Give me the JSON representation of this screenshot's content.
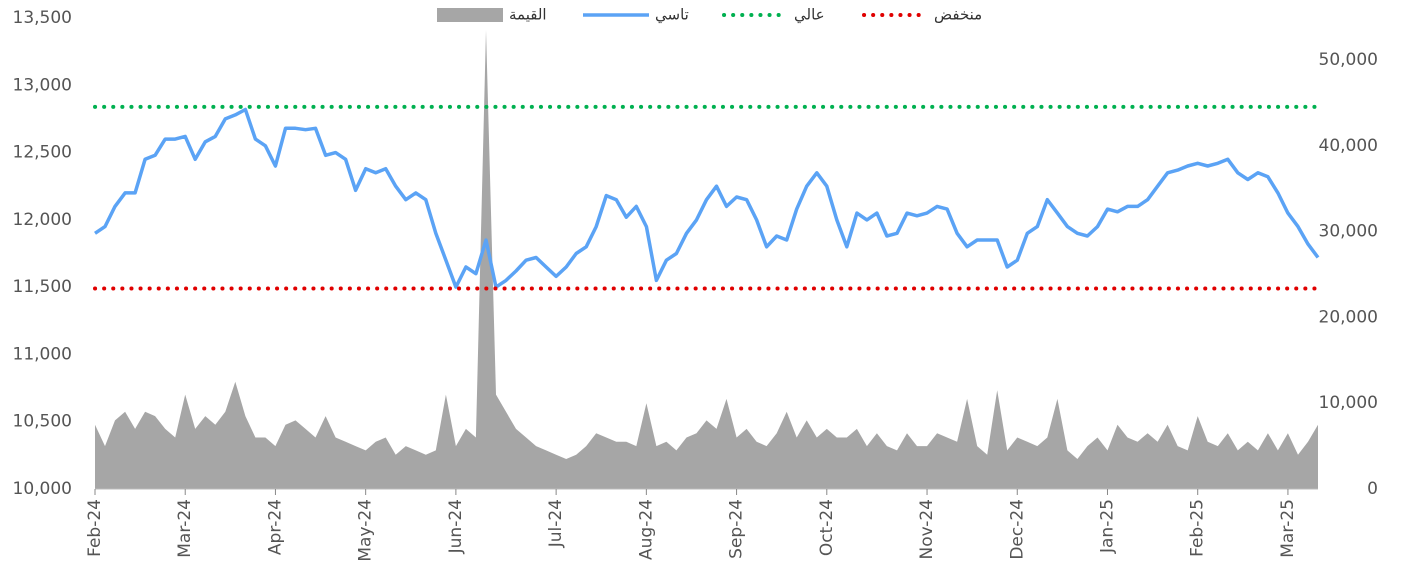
{
  "chart_data": {
    "type": "line",
    "categories": [
      "Feb-24",
      null,
      null,
      null,
      null,
      null,
      null,
      null,
      null,
      "Mar-24",
      null,
      null,
      null,
      null,
      null,
      null,
      null,
      null,
      "Apr-24",
      null,
      null,
      null,
      null,
      null,
      null,
      null,
      null,
      "May-24",
      null,
      null,
      null,
      null,
      null,
      null,
      null,
      null,
      "Jun-24",
      null,
      null,
      null,
      null,
      null,
      null,
      null,
      null,
      null,
      "Jul-24",
      null,
      null,
      null,
      null,
      null,
      null,
      null,
      null,
      "Aug-24",
      null,
      null,
      null,
      null,
      null,
      null,
      null,
      null,
      "Sep-24",
      null,
      null,
      null,
      null,
      null,
      null,
      null,
      null,
      "Oct-24",
      null,
      null,
      null,
      null,
      null,
      null,
      null,
      null,
      null,
      "Nov-24",
      null,
      null,
      null,
      null,
      null,
      null,
      null,
      null,
      "Dec-24",
      null,
      null,
      null,
      null,
      null,
      null,
      null,
      null,
      "Jan-25",
      null,
      null,
      null,
      null,
      null,
      null,
      null,
      null,
      "Feb-25",
      null,
      null,
      null,
      null,
      null,
      null,
      null,
      null,
      "Mar-25",
      null,
      null,
      null
    ],
    "series": [
      {
        "name": "القيمة",
        "type": "area",
        "color": "#a6a6a6",
        "axis": "y2",
        "values": [
          7500,
          5000,
          8000,
          9000,
          7000,
          9000,
          8500,
          7000,
          6000,
          11000,
          7000,
          8500,
          7500,
          9000,
          12500,
          8500,
          6000,
          6000,
          5000,
          7500,
          8000,
          7000,
          6000,
          8500,
          6000,
          5500,
          5000,
          4500,
          5500,
          6000,
          4000,
          5000,
          4500,
          4000,
          4500,
          11000,
          5000,
          7000,
          6000,
          53500,
          11000,
          9000,
          7000,
          6000,
          5000,
          4500,
          4000,
          3500,
          4000,
          5000,
          6500,
          6000,
          5500,
          5500,
          5000,
          10000,
          5000,
          5500,
          4500,
          6000,
          6500,
          8000,
          7000,
          10500,
          6000,
          7000,
          5500,
          5000,
          6500,
          9000,
          6000,
          8000,
          6000,
          7000,
          6000,
          6000,
          7000,
          5000,
          6500,
          5000,
          4500,
          6500,
          5000,
          5000,
          6500,
          6000,
          5500,
          10500,
          5000,
          4000,
          11500,
          4500,
          6000,
          5500,
          5000,
          6000,
          10500,
          4500,
          3500,
          5000,
          6000,
          4500,
          7500,
          6000,
          5500,
          6500,
          5500,
          7500,
          5000,
          4500,
          8500,
          5500,
          5000,
          6500,
          4500,
          5500,
          4500,
          6500,
          4500,
          6500,
          4000,
          5500,
          7500
        ]
      },
      {
        "name": "تاسي",
        "type": "line",
        "color": "#5ba3f5",
        "values": [
          11900,
          11950,
          12100,
          12200,
          12200,
          12450,
          12480,
          12600,
          12600,
          12620,
          12450,
          12580,
          12620,
          12750,
          12780,
          12820,
          12600,
          12550,
          12400,
          12680,
          12680,
          12670,
          12680,
          12480,
          12500,
          12450,
          12220,
          12380,
          12350,
          12380,
          12250,
          12150,
          12200,
          12150,
          11900,
          11700,
          11500,
          11650,
          11600,
          11850,
          11500,
          11550,
          11620,
          11700,
          11720,
          11650,
          11580,
          11650,
          11750,
          11800,
          11950,
          12180,
          12150,
          12020,
          12100,
          11950,
          11550,
          11700,
          11750,
          11900,
          12000,
          12150,
          12250,
          12100,
          12170,
          12150,
          12000,
          11800,
          11880,
          11850,
          12080,
          12250,
          12350,
          12250,
          12000,
          11800,
          12050,
          12000,
          12050,
          11880,
          11900,
          12050,
          12030,
          12050,
          12100,
          12080,
          11900,
          11800,
          11850,
          11850,
          11850,
          11650,
          11700,
          11900,
          11950,
          12150,
          12050,
          11950,
          11900,
          11880,
          11950,
          12080,
          12060,
          12100,
          12100,
          12150,
          12250,
          12350,
          12370,
          12400,
          12420,
          12400,
          12420,
          12450,
          12350,
          12300,
          12350,
          12320,
          12200,
          12050,
          11950,
          11820,
          11720
        ]
      }
    ],
    "reference_lines": [
      {
        "name": "عالي",
        "color": "#00b050",
        "value": 12840
      },
      {
        "name": "منخفض",
        "color": "#e00000",
        "value": 11490
      }
    ],
    "ylim": [
      10000,
      13500
    ],
    "yticks": [
      {
        "value": 10000,
        "label": "10,000"
      },
      {
        "value": 10500,
        "label": "10,500"
      },
      {
        "value": 11000,
        "label": "11,000"
      },
      {
        "value": 11500,
        "label": "11,500"
      },
      {
        "value": 12000,
        "label": "12,000"
      },
      {
        "value": 12500,
        "label": "12,500"
      },
      {
        "value": 13000,
        "label": "13,000"
      },
      {
        "value": 13500,
        "label": "13,500"
      }
    ],
    "y2lim": [
      0,
      54900
    ],
    "y2ticks": [
      0,
      {
        "value": 10000,
        "label": "10,000"
      },
      {
        "value": 20000,
        "label": "20,000"
      },
      {
        "value": 30000,
        "label": "30,000"
      },
      {
        "value": 40000,
        "label": "40,000"
      },
      {
        "value": 50000,
        "label": "50,000"
      }
    ]
  }
}
